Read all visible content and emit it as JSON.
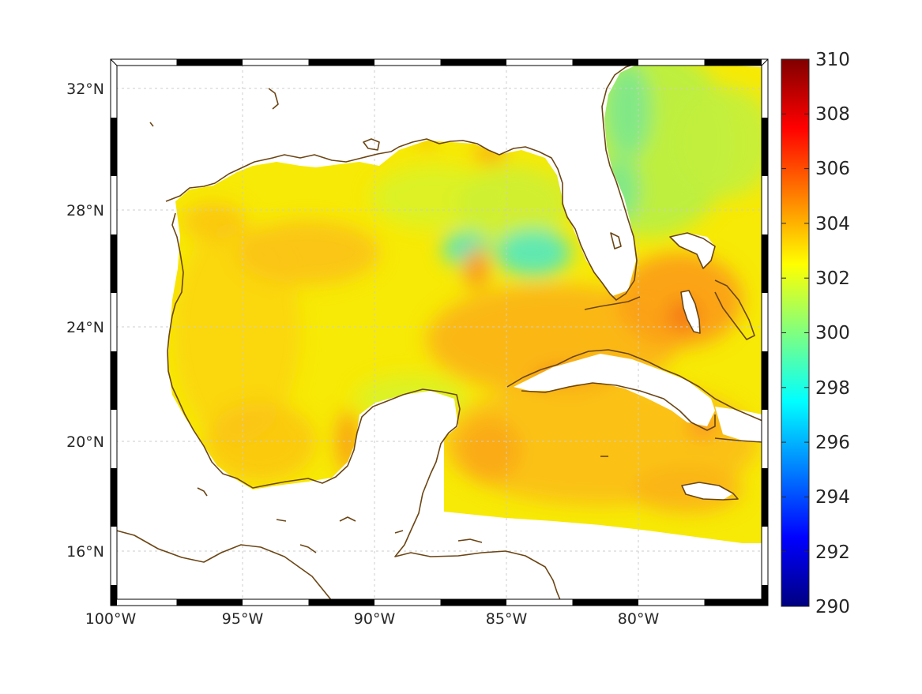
{
  "map": {
    "lat_ticks": [
      "32°N",
      "28°N",
      "24°N",
      "20°N",
      "16°N"
    ],
    "lon_ticks": [
      "100°W",
      "95°W",
      "90°W",
      "85°W",
      "80°W"
    ],
    "grid": true,
    "frame_style": "checkered",
    "coastline_color": "#6b4514",
    "colormap": "jet"
  },
  "colorbar": {
    "min": 290,
    "max": 310,
    "ticks": [
      "310",
      "308",
      "306",
      "304",
      "302",
      "300",
      "298",
      "296",
      "294",
      "292",
      "290"
    ],
    "colors": [
      "#800000",
      "#ff0000",
      "#ffff00",
      "#00ffff",
      "#0000ff",
      "#000080"
    ]
  },
  "chart_data": {
    "type": "heatmap",
    "region": "Gulf of Mexico and Caribbean",
    "lon_range": [
      -100,
      -75
    ],
    "lat_range": [
      14.2,
      32.8
    ],
    "value_range": [
      290,
      310
    ],
    "dominant_values": [
      302,
      303,
      304
    ],
    "features": [
      {
        "value": 299.5,
        "lon": -86.2,
        "lat": 26.8
      },
      {
        "value": 299.5,
        "lon": -84.5,
        "lat": 26.5
      },
      {
        "value": 300.5,
        "lon": -79.5,
        "lat": 31.5
      },
      {
        "value": 305,
        "lon": -82.8,
        "lat": 22.2
      },
      {
        "value": 305,
        "lon": -78.5,
        "lat": 24.3
      },
      {
        "value": 304.5,
        "lon": -86.2,
        "lat": 25.8
      }
    ]
  }
}
